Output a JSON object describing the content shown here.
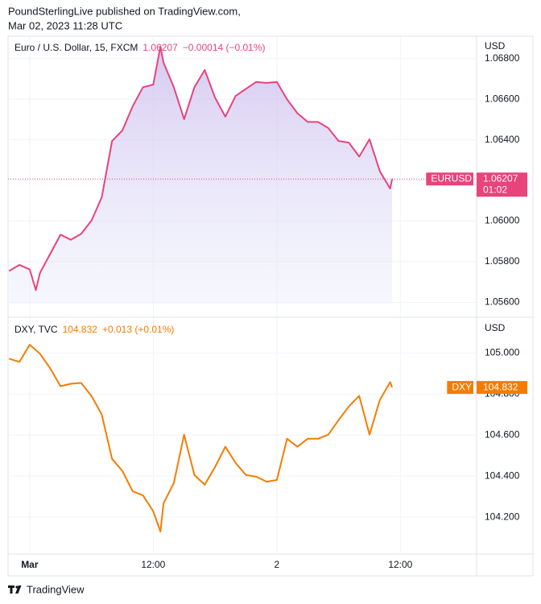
{
  "header": {
    "line1": "PoundSterlingLive published on TradingView.com,",
    "line2": "Mar 02, 2023 11:28 UTC"
  },
  "footer": {
    "brand": "TradingView"
  },
  "chart_data": [
    {
      "type": "area",
      "title": "Euro / U.S. Dollar, 15, FXCM",
      "last": "1.06207",
      "change": "−0.00014 (−0.01%)",
      "symbol": "EURUSD",
      "countdown": "01:02",
      "axis_label": "USD",
      "color": "#e8437b",
      "x": [
        -2,
        -1,
        0,
        0.6,
        1,
        2,
        3,
        4,
        5,
        6,
        7,
        8,
        9,
        10,
        11,
        12,
        12.7,
        13,
        14,
        15,
        16,
        17,
        18,
        19,
        20,
        21,
        22,
        23,
        24,
        25,
        26,
        27,
        28,
        29,
        30,
        31,
        32,
        33,
        34,
        35,
        35.2
      ],
      "values": [
        1.05754,
        1.05784,
        1.05762,
        1.0566,
        1.05745,
        1.05839,
        1.05933,
        1.05908,
        1.05937,
        1.06002,
        1.06117,
        1.06394,
        1.06446,
        1.06565,
        1.06659,
        1.06672,
        1.0686,
        1.0678,
        1.06659,
        1.06501,
        1.06659,
        1.06744,
        1.06608,
        1.06514,
        1.06616,
        1.06651,
        1.06685,
        1.0668,
        1.06685,
        1.06599,
        1.06531,
        1.06488,
        1.06488,
        1.06458,
        1.06394,
        1.06386,
        1.06317,
        1.06403,
        1.06245,
        1.0616,
        1.06207
      ],
      "xlim": [
        -2.1,
        43.4
      ],
      "ylim": [
        1.0553,
        1.0691
      ],
      "yticks": [
        {
          "value": 1.056,
          "label": "1.05600"
        },
        {
          "value": 1.058,
          "label": "1.05800"
        },
        {
          "value": 1.06,
          "label": "1.06000"
        },
        {
          "value": 1.062,
          "label": "1.06200"
        },
        {
          "value": 1.064,
          "label": "1.06400"
        },
        {
          "value": 1.066,
          "label": "1.06600"
        },
        {
          "value": 1.068,
          "label": "1.06800"
        }
      ],
      "grid": true
    },
    {
      "type": "line",
      "title": "DXY, TVC",
      "last": "104.832",
      "change": "+0.013 (+0.01%)",
      "symbol": "DXY",
      "axis_label": "USD",
      "color": "#f57c00",
      "x": [
        -2,
        -1,
        0,
        1,
        2,
        3,
        4,
        5,
        6,
        7,
        8,
        9,
        10,
        11,
        12,
        12.7,
        13,
        14,
        15,
        16,
        17,
        18,
        19,
        20,
        21,
        22,
        23,
        24,
        25,
        26,
        27,
        28,
        29,
        30,
        31,
        32,
        33,
        34,
        35,
        35.2
      ],
      "values": [
        104.972,
        104.957,
        105.04,
        104.996,
        104.925,
        104.838,
        104.85,
        104.854,
        104.791,
        104.7,
        104.484,
        104.425,
        104.326,
        104.306,
        104.228,
        104.13,
        104.267,
        104.366,
        104.602,
        104.405,
        104.358,
        104.444,
        104.543,
        104.464,
        104.405,
        104.397,
        104.373,
        104.381,
        104.582,
        104.543,
        104.582,
        104.582,
        104.602,
        104.673,
        104.74,
        104.791,
        104.602,
        104.771,
        104.858,
        104.832
      ],
      "xlim": [
        -2.1,
        43.4
      ],
      "ylim": [
        104.02,
        105.17
      ],
      "yticks": [
        {
          "value": 104.2,
          "label": "104.200"
        },
        {
          "value": 104.4,
          "label": "104.400"
        },
        {
          "value": 104.6,
          "label": "104.600"
        },
        {
          "value": 104.8,
          "label": "104.800"
        },
        {
          "value": 105,
          "label": "105.000"
        }
      ],
      "xticks": [
        {
          "value": 0,
          "label": "Mar"
        },
        {
          "value": 12,
          "label": "12:00"
        },
        {
          "value": 24,
          "label": "2"
        },
        {
          "value": 36,
          "label": "12:00"
        }
      ],
      "grid": true
    }
  ]
}
